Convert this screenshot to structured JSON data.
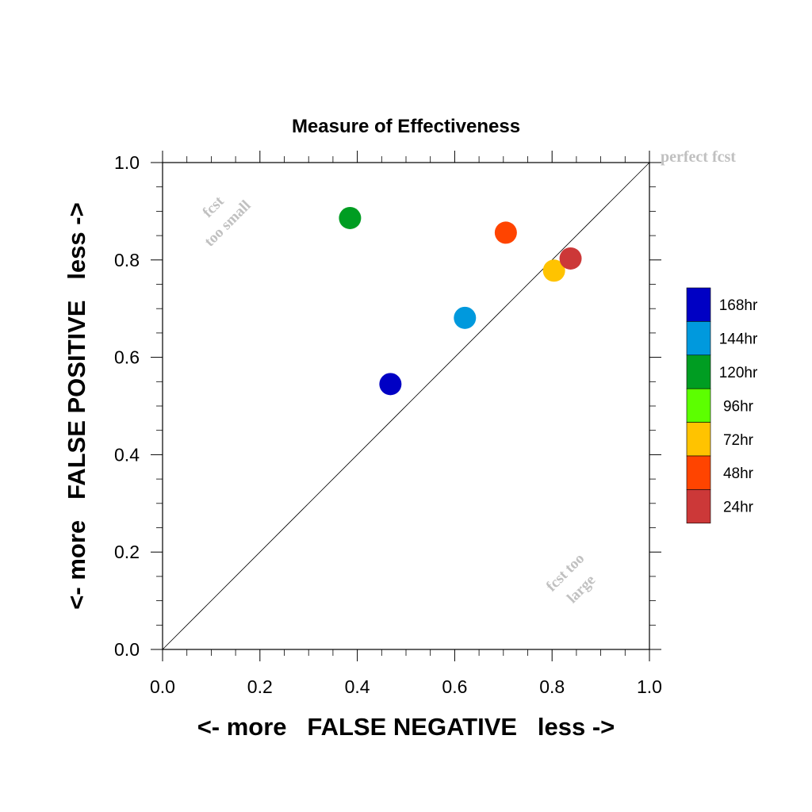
{
  "chart_data": {
    "type": "scatter",
    "title": "Measure of Effectiveness",
    "xlabel": "<- more   FALSE NEGATIVE   less ->",
    "ylabel": "<- more   FALSE POSITIVE   less ->",
    "xlim": [
      0.0,
      1.0
    ],
    "ylim": [
      0.0,
      1.0
    ],
    "x_ticks": [
      "0.0",
      "0.2",
      "0.4",
      "0.6",
      "0.8",
      "1.0"
    ],
    "y_ticks": [
      "0.0",
      "0.2",
      "0.4",
      "0.6",
      "0.8",
      "1.0"
    ],
    "grid": false,
    "diagonal_line": true,
    "annotations": {
      "perfect": "perfect fcst",
      "small_line1": "fcst",
      "small_line2": "too small",
      "large_line1": "fcst too",
      "large_line2": "large"
    },
    "legend_placement": "right",
    "legend": [
      {
        "label": "168hr",
        "color": "#0000c4"
      },
      {
        "label": "144hr",
        "color": "#0099dd"
      },
      {
        "label": "120hr",
        "color": "#009d22"
      },
      {
        "label": "96hr",
        "color": "#5cff00"
      },
      {
        "label": "72hr",
        "color": "#ffc300"
      },
      {
        "label": "48hr",
        "color": "#ff4400"
      },
      {
        "label": "24hr",
        "color": "#cc3838"
      }
    ],
    "points": [
      {
        "series": "168hr",
        "x": 0.468,
        "y": 0.545
      },
      {
        "series": "144hr",
        "x": 0.621,
        "y": 0.681
      },
      {
        "series": "120hr",
        "x": 0.385,
        "y": 0.886
      },
      {
        "series": "72hr",
        "x": 0.804,
        "y": 0.778
      },
      {
        "series": "48hr",
        "x": 0.705,
        "y": 0.856
      },
      {
        "series": "24hr",
        "x": 0.838,
        "y": 0.803
      }
    ]
  }
}
